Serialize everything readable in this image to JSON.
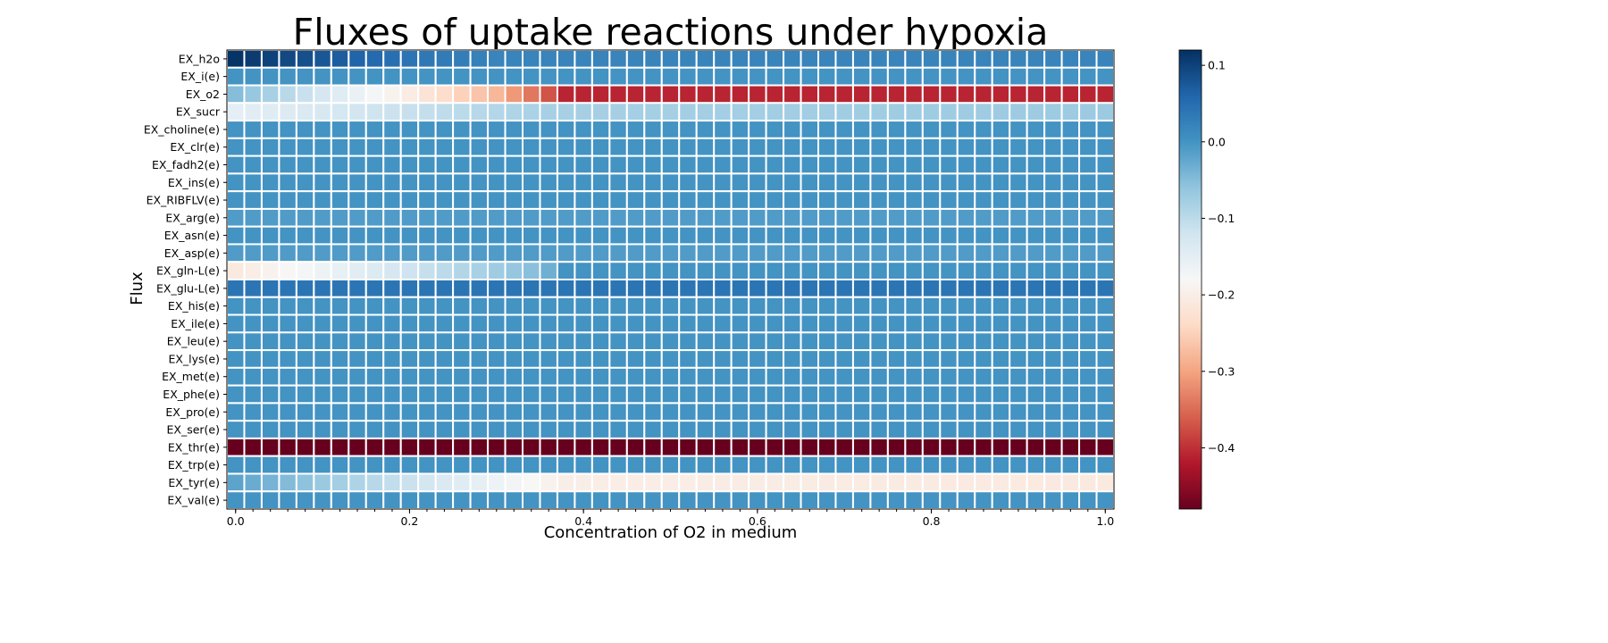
{
  "chart_data": {
    "type": "heatmap",
    "title": "Fluxes of uptake reactions under hypoxia",
    "xlabel": "Concentration of O2 in medium",
    "ylabel": "Flux",
    "x_ticks": [
      "0.0",
      "0.2",
      "0.4",
      "0.6",
      "0.8",
      "1.0"
    ],
    "x_tick_values": [
      0.0,
      0.2,
      0.4,
      0.6,
      0.8,
      1.0
    ],
    "x_range": [
      0.0,
      1.0
    ],
    "n_columns": 51,
    "colormap": "RdBu",
    "vmin": -0.48,
    "vmax": 0.12,
    "colorbar_ticks": [
      "0.1",
      "0.0",
      "−0.1",
      "−0.2",
      "−0.3",
      "−0.4"
    ],
    "colorbar_tick_values": [
      0.1,
      0.0,
      -0.1,
      -0.2,
      -0.3,
      -0.4
    ],
    "rows": [
      {
        "name": "EX_h2o",
        "profile": [
          [
            0.0,
            0.115
          ],
          [
            0.2,
            0.04
          ],
          [
            0.3,
            0.02
          ],
          [
            1.0,
            0.02
          ]
        ]
      },
      {
        "name": "EX_i(e)",
        "profile": [
          [
            0.0,
            0.0
          ],
          [
            1.0,
            0.0
          ]
        ]
      },
      {
        "name": "EX_o2",
        "profile": [
          [
            0.0,
            -0.05
          ],
          [
            0.18,
            -0.19
          ],
          [
            0.3,
            -0.28
          ],
          [
            0.36,
            -0.37
          ],
          [
            0.38,
            -0.41
          ],
          [
            1.0,
            -0.41
          ]
        ]
      },
      {
        "name": "EX_sucr",
        "profile": [
          [
            0.0,
            -0.15
          ],
          [
            0.36,
            -0.08
          ],
          [
            1.0,
            -0.07
          ]
        ]
      },
      {
        "name": "EX_choline(e)",
        "profile": [
          [
            0.0,
            0.0
          ],
          [
            1.0,
            0.0
          ]
        ]
      },
      {
        "name": "EX_clr(e)",
        "profile": [
          [
            0.0,
            0.0
          ],
          [
            1.0,
            0.0
          ]
        ]
      },
      {
        "name": "EX_fadh2(e)",
        "profile": [
          [
            0.0,
            0.0
          ],
          [
            1.0,
            0.0
          ]
        ]
      },
      {
        "name": "EX_ins(e)",
        "profile": [
          [
            0.0,
            0.0
          ],
          [
            1.0,
            0.0
          ]
        ]
      },
      {
        "name": "EX_RIBFLV(e)",
        "profile": [
          [
            0.0,
            0.0
          ],
          [
            1.0,
            0.0
          ]
        ]
      },
      {
        "name": "EX_arg(e)",
        "profile": [
          [
            0.0,
            -0.01
          ],
          [
            1.0,
            -0.01
          ]
        ]
      },
      {
        "name": "EX_asn(e)",
        "profile": [
          [
            0.0,
            0.0
          ],
          [
            1.0,
            0.0
          ]
        ]
      },
      {
        "name": "EX_asp(e)",
        "profile": [
          [
            0.0,
            -0.01
          ],
          [
            1.0,
            -0.01
          ]
        ]
      },
      {
        "name": "EX_gln-L(e)",
        "profile": [
          [
            0.0,
            -0.21
          ],
          [
            0.35,
            -0.05
          ],
          [
            0.38,
            0.0
          ],
          [
            1.0,
            0.0
          ]
        ]
      },
      {
        "name": "EX_glu-L(e)",
        "profile": [
          [
            0.0,
            0.04
          ],
          [
            1.0,
            0.04
          ]
        ]
      },
      {
        "name": "EX_his(e)",
        "profile": [
          [
            0.0,
            0.0
          ],
          [
            1.0,
            0.0
          ]
        ]
      },
      {
        "name": "EX_ile(e)",
        "profile": [
          [
            0.0,
            0.0
          ],
          [
            1.0,
            0.0
          ]
        ]
      },
      {
        "name": "EX_leu(e)",
        "profile": [
          [
            0.0,
            0.0
          ],
          [
            1.0,
            0.0
          ]
        ]
      },
      {
        "name": "EX_lys(e)",
        "profile": [
          [
            0.0,
            0.0
          ],
          [
            1.0,
            0.0
          ]
        ]
      },
      {
        "name": "EX_met(e)",
        "profile": [
          [
            0.0,
            0.0
          ],
          [
            1.0,
            0.0
          ]
        ]
      },
      {
        "name": "EX_phe(e)",
        "profile": [
          [
            0.0,
            0.0
          ],
          [
            1.0,
            0.0
          ]
        ]
      },
      {
        "name": "EX_pro(e)",
        "profile": [
          [
            0.0,
            0.0
          ],
          [
            1.0,
            0.0
          ]
        ]
      },
      {
        "name": "EX_ser(e)",
        "profile": [
          [
            0.0,
            0.0
          ],
          [
            1.0,
            0.0
          ]
        ]
      },
      {
        "name": "EX_thr(e)",
        "profile": [
          [
            0.0,
            -0.48
          ],
          [
            1.0,
            -0.48
          ]
        ]
      },
      {
        "name": "EX_trp(e)",
        "profile": [
          [
            0.0,
            0.0
          ],
          [
            1.0,
            0.0
          ]
        ]
      },
      {
        "name": "EX_tyr(e)",
        "profile": [
          [
            0.0,
            -0.02
          ],
          [
            0.38,
            -0.2
          ],
          [
            1.0,
            -0.21
          ]
        ]
      },
      {
        "name": "EX_val(e)",
        "profile": [
          [
            0.0,
            0.0
          ],
          [
            1.0,
            0.0
          ]
        ]
      }
    ]
  }
}
